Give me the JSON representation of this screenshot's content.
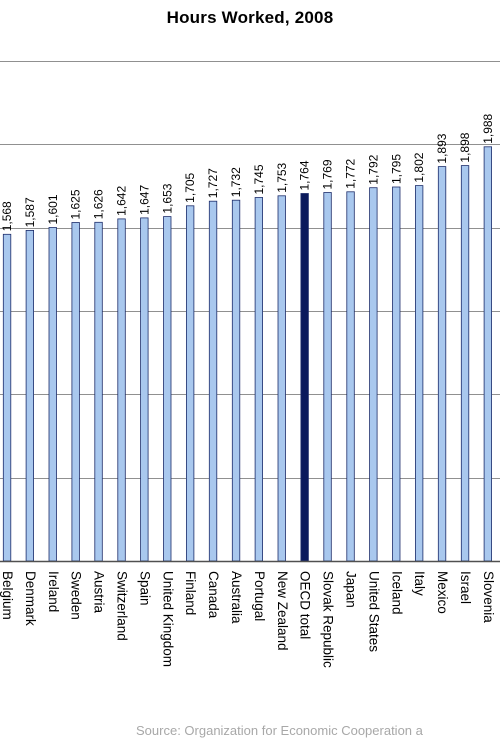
{
  "chart_data": {
    "type": "bar",
    "title": "Hours Worked, 2008",
    "source": "Source: Organization for Economic Cooperation a",
    "categories": [
      "Belgium",
      "Denmark",
      "Ireland",
      "Sweden",
      "Austria",
      "Switzerland",
      "Spain",
      "United Kingdom",
      "Finland",
      "Canada",
      "Australia",
      "Portugal",
      "New Zealand",
      "OECD total",
      "Slovak Republic",
      "Japan",
      "United States",
      "Iceland",
      "Italy",
      "Mexico",
      "Israel",
      "Slovenia"
    ],
    "values": [
      1568,
      1587,
      1601,
      1625,
      1626,
      1642,
      1647,
      1653,
      1705,
      1727,
      1732,
      1745,
      1753,
      1764,
      1769,
      1772,
      1792,
      1795,
      1802,
      1893,
      1898,
      1988
    ],
    "value_labels": [
      "1,568",
      "1,587",
      "1,601",
      "1,625",
      "1,626",
      "1,642",
      "1,647",
      "1,653",
      "1,705",
      "1,727",
      "1,732",
      "1,745",
      "1,753",
      "1,764",
      "1,769",
      "1,772",
      "1,792",
      "1,795",
      "1,802",
      "1,893",
      "1,898",
      "1,988"
    ],
    "highlight": "OECD total",
    "ylim": [
      0,
      2400
    ],
    "grid": true,
    "colors": {
      "bar": "#a9c8ee",
      "bar_highlight": "#0a1a5c",
      "bar_stroke": "#1c2c6a",
      "grid": "#909090",
      "axis": "#505050"
    }
  }
}
